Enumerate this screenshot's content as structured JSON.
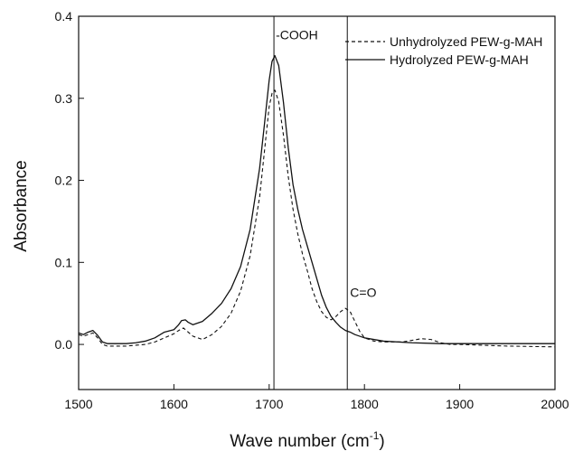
{
  "chart_data": {
    "type": "line",
    "title": "",
    "xlabel": "Wave number (cm",
    "xlabel_sup": "-1",
    "xlabel_close": ")",
    "ylabel": "Absorbance",
    "xlim": [
      1500,
      2000
    ],
    "ylim": [
      -0.055,
      0.4
    ],
    "x_ticks": [
      1500,
      1600,
      1700,
      1800,
      1900,
      2000
    ],
    "y_ticks": [
      0.0,
      0.1,
      0.2,
      0.3,
      0.4
    ],
    "x_tick_labels": [
      "1500",
      "1600",
      "1700",
      "1800",
      "1900",
      "2000"
    ],
    "y_tick_labels": [
      "0.0",
      "0.1",
      "0.2",
      "0.3",
      "0.4"
    ],
    "grid": false,
    "legend_position": "top-right",
    "vlines": [
      1705,
      1782
    ],
    "annotations": [
      {
        "text": "-COOH",
        "x": 1705,
        "y": 0.372
      },
      {
        "text": "C=O",
        "x": 1783,
        "y": 0.058
      }
    ],
    "series": [
      {
        "name": "Unhydrolyzed PEW-g-MAH",
        "style": "dashed",
        "x": [
          1500,
          1505,
          1510,
          1515,
          1520,
          1525,
          1530,
          1540,
          1550,
          1560,
          1570,
          1580,
          1590,
          1600,
          1605,
          1610,
          1615,
          1620,
          1630,
          1640,
          1650,
          1660,
          1670,
          1680,
          1690,
          1695,
          1700,
          1703,
          1706,
          1710,
          1715,
          1720,
          1725,
          1730,
          1735,
          1740,
          1745,
          1750,
          1755,
          1760,
          1765,
          1770,
          1775,
          1780,
          1785,
          1790,
          1795,
          1800,
          1810,
          1820,
          1840,
          1860,
          1870,
          1880,
          1890,
          1900,
          1950,
          2000
        ],
        "y": [
          0.012,
          0.01,
          0.012,
          0.014,
          0.008,
          0.0,
          -0.002,
          -0.002,
          -0.002,
          -0.001,
          0.0,
          0.003,
          0.008,
          0.013,
          0.017,
          0.02,
          0.015,
          0.01,
          0.006,
          0.012,
          0.022,
          0.038,
          0.065,
          0.108,
          0.18,
          0.235,
          0.29,
          0.306,
          0.31,
          0.296,
          0.255,
          0.205,
          0.165,
          0.135,
          0.11,
          0.09,
          0.068,
          0.052,
          0.04,
          0.033,
          0.03,
          0.034,
          0.04,
          0.044,
          0.04,
          0.028,
          0.016,
          0.008,
          0.004,
          0.003,
          0.003,
          0.007,
          0.006,
          0.002,
          0.0,
          0.0,
          -0.002,
          -0.003
        ]
      },
      {
        "name": "Hydrolyzed PEW-g-MAH",
        "style": "solid",
        "x": [
          1500,
          1505,
          1510,
          1515,
          1520,
          1525,
          1530,
          1540,
          1550,
          1560,
          1570,
          1580,
          1590,
          1600,
          1605,
          1608,
          1612,
          1615,
          1620,
          1630,
          1640,
          1650,
          1660,
          1670,
          1680,
          1690,
          1695,
          1700,
          1703,
          1706,
          1710,
          1715,
          1720,
          1725,
          1730,
          1735,
          1740,
          1745,
          1750,
          1755,
          1760,
          1765,
          1770,
          1775,
          1780,
          1785,
          1790,
          1800,
          1820,
          1850,
          1880,
          1900,
          1950,
          2000
        ],
        "y": [
          0.014,
          0.012,
          0.015,
          0.017,
          0.011,
          0.003,
          0.001,
          0.001,
          0.001,
          0.002,
          0.004,
          0.008,
          0.015,
          0.018,
          0.024,
          0.029,
          0.03,
          0.027,
          0.024,
          0.028,
          0.038,
          0.05,
          0.068,
          0.095,
          0.14,
          0.215,
          0.268,
          0.322,
          0.345,
          0.352,
          0.34,
          0.295,
          0.24,
          0.195,
          0.165,
          0.14,
          0.12,
          0.1,
          0.08,
          0.06,
          0.045,
          0.034,
          0.027,
          0.021,
          0.017,
          0.015,
          0.012,
          0.008,
          0.004,
          0.002,
          0.001,
          0.001,
          0.001,
          0.001
        ]
      }
    ]
  }
}
